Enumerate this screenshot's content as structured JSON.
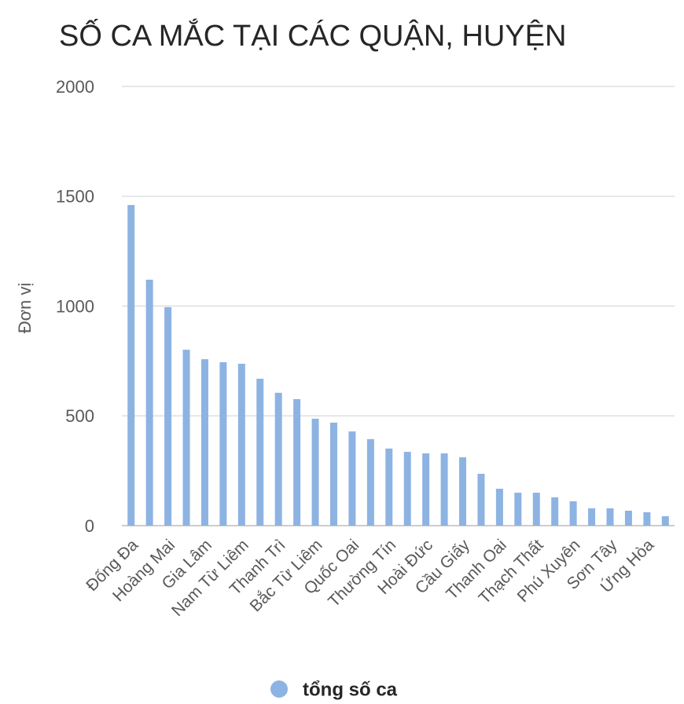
{
  "chart_data": {
    "type": "bar",
    "title": "SỐ CA MẮC TẠI CÁC QUẬN, HUYỆN",
    "y_label": "Đơn vị",
    "categories": [
      "Đống Đa",
      null,
      "Hoàng Mai",
      null,
      "Gia Lâm",
      null,
      "Nam Từ Liêm",
      null,
      "Thanh Trì",
      null,
      "Bắc Từ Liêm",
      null,
      "Quốc Oai",
      null,
      "Thường Tín",
      null,
      "Hoài Đức",
      null,
      "Cầu Giấy",
      null,
      "Thanh Oai",
      null,
      "Thạch Thất",
      null,
      "Phú Xuyên",
      null,
      "Sơn Tây",
      null,
      "Ứng Hòa",
      null
    ],
    "series": [
      {
        "name": "tổng số ca",
        "color": "#8db3e2",
        "values": [
          1460,
          1120,
          995,
          801,
          758,
          744,
          737,
          669,
          605,
          576,
          487,
          469,
          429,
          394,
          351,
          336,
          329,
          329,
          311,
          236,
          168,
          150,
          150,
          129,
          111,
          79,
          79,
          68,
          61,
          43
        ]
      }
    ],
    "ylim": [
      0,
      2000
    ],
    "yticks": [
      0,
      500,
      1000,
      1500,
      2000
    ],
    "grid": true,
    "legend": "bottom"
  }
}
